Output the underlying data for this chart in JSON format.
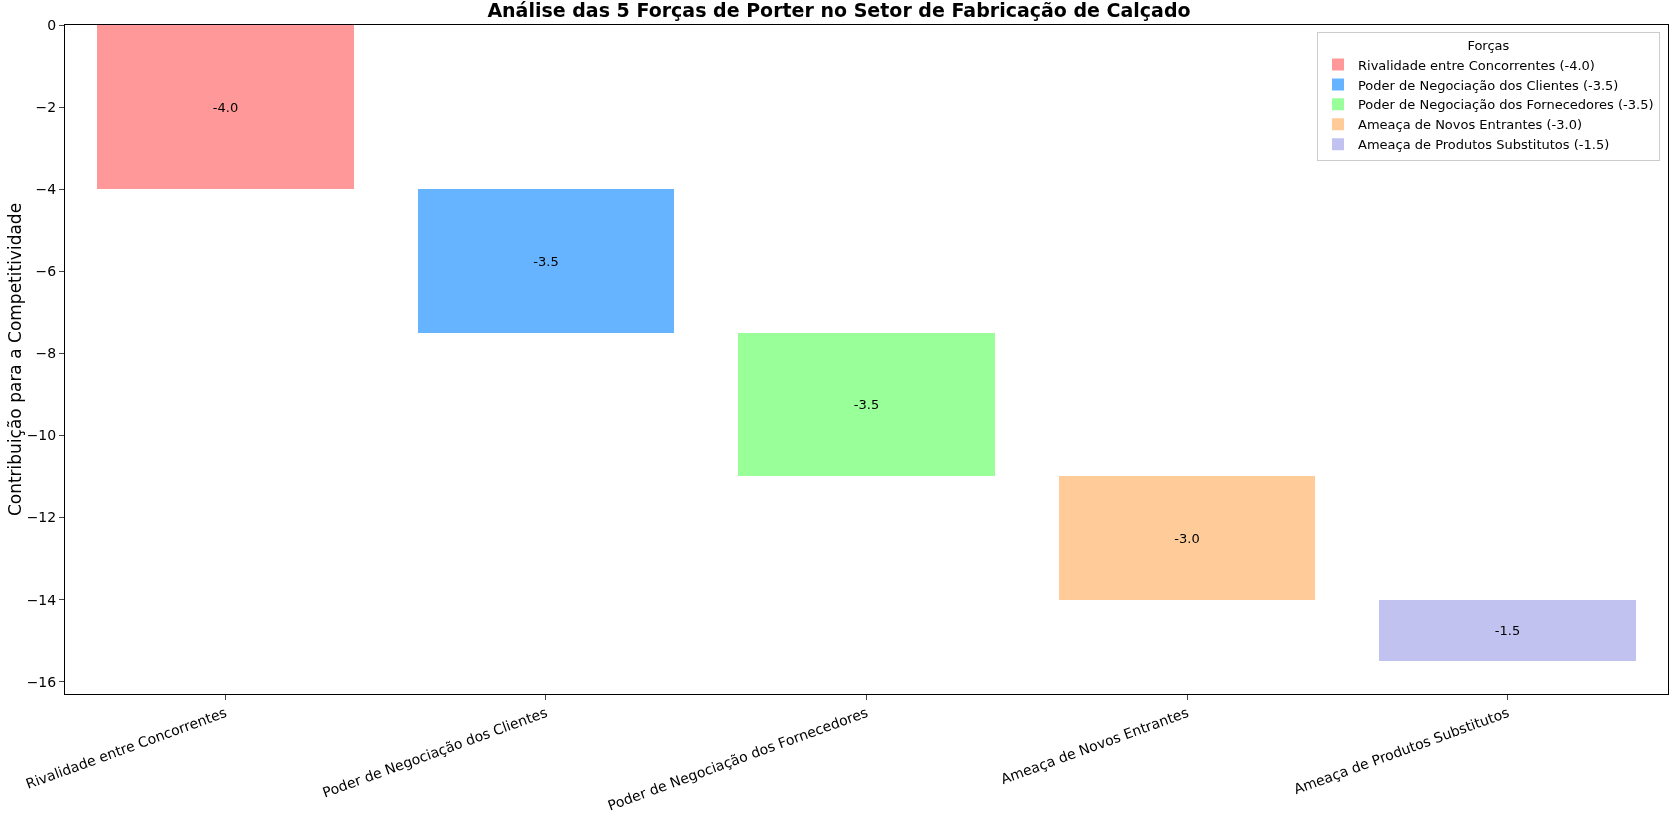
{
  "chart_data": {
    "type": "bar",
    "title": "Análise das 5 Forças de Porter no Setor de Fabricação de Calçado",
    "ylabel": "Contribuição para a Competitividade",
    "legend_title": "Forças",
    "categories": [
      "Rivalidade entre Concorrentes",
      "Poder de Negociação dos Clientes",
      "Poder de Negociação dos Fornecedores",
      "Ameaça de Novos Entrantes",
      "Ameaça de Produtos Substitutos"
    ],
    "series": [
      {
        "name": "Rivalidade entre Concorrentes (-4.0)",
        "color": "#ff9999",
        "x": [
          "Rivalidade entre Concorrentes"
        ],
        "base": [
          0
        ],
        "values": [
          -4
        ],
        "value_labels": [
          "-4.0"
        ]
      },
      {
        "name": "Poder de Negociação dos Clientes (-3.5)",
        "color": "#66b3ff",
        "x": [
          "Poder de Negociação dos Clientes"
        ],
        "base": [
          -4
        ],
        "values": [
          -3.5
        ],
        "value_labels": [
          "-3.5"
        ]
      },
      {
        "name": "Poder de Negociação dos Fornecedores (-3.5)",
        "color": "#99ff99",
        "x": [
          "Poder de Negociação dos Fornecedores"
        ],
        "base": [
          -7.5
        ],
        "values": [
          -3.5
        ],
        "value_labels": [
          "-3.5"
        ]
      },
      {
        "name": "Ameaça de Novos Entrantes (-3.0)",
        "color": "#ffcc99",
        "x": [
          "Ameaça de Novos Entrantes"
        ],
        "base": [
          -11
        ],
        "values": [
          -3
        ],
        "value_labels": [
          "-3.0"
        ]
      },
      {
        "name": "Ameaça de Produtos Substitutos (-1.5)",
        "color": "#c2c2f0",
        "x": [
          "Ameaça de Produtos Substitutos"
        ],
        "base": [
          -14
        ],
        "values": [
          -1.5
        ],
        "value_labels": [
          "-1.5"
        ]
      }
    ],
    "ylim": [
      -16.3,
      0
    ],
    "yticks": [
      {
        "value": 0,
        "label": "0"
      },
      {
        "value": -2,
        "label": "−2"
      },
      {
        "value": -4,
        "label": "−4"
      },
      {
        "value": -6,
        "label": "−6"
      },
      {
        "value": -8,
        "label": "−8"
      },
      {
        "value": -10,
        "label": "−10"
      },
      {
        "value": -12,
        "label": "−12"
      },
      {
        "value": -14,
        "label": "−14"
      },
      {
        "value": -16,
        "label": "−16"
      }
    ],
    "grid": false,
    "legend": "top right"
  }
}
